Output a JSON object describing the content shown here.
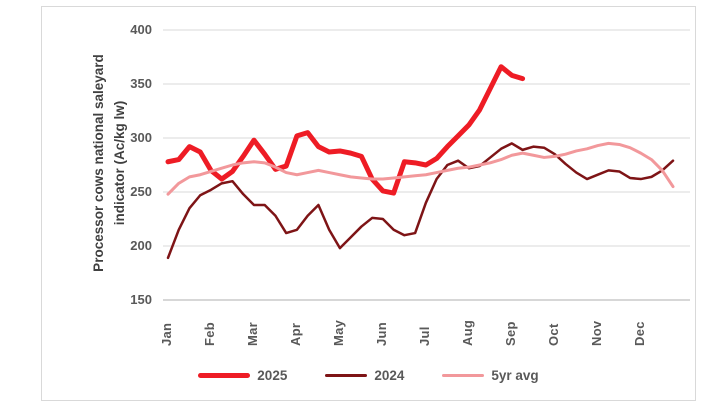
{
  "chart_data": {
    "type": "line",
    "title": "",
    "ylabel": "Processor cows national saleyard indicator (Ac/kg lw)",
    "xlabel": "",
    "ylim": [
      150,
      400
    ],
    "yticks": [
      400,
      350,
      300,
      250,
      200,
      150
    ],
    "grid": true,
    "legend_position": "bottom",
    "x_axis": {
      "categories": [
        "Jan",
        "Feb",
        "Mar",
        "Apr",
        "May",
        "Jun",
        "Jul",
        "Aug",
        "Sep",
        "Oct",
        "Nov",
        "Dec"
      ],
      "points_per_month": 4,
      "frequency": "weekly"
    },
    "series": [
      {
        "name": "2025",
        "color": "#EE1C25",
        "stroke_width": 5,
        "values": [
          278,
          280,
          292,
          287,
          270,
          262,
          269,
          283,
          298,
          285,
          271,
          274,
          302,
          305,
          292,
          287,
          288,
          286,
          283,
          262,
          251,
          249,
          278,
          277,
          275,
          281,
          292,
          302,
          312,
          326,
          346,
          366,
          358,
          355
        ]
      },
      {
        "name": "2024",
        "color": "#7E1416",
        "stroke_width": 2.5,
        "values": [
          189,
          215,
          235,
          247,
          252,
          258,
          260,
          248,
          238,
          238,
          228,
          212,
          215,
          228,
          238,
          215,
          198,
          208,
          218,
          226,
          225,
          215,
          210,
          212,
          240,
          262,
          275,
          279,
          272,
          274,
          282,
          290,
          295,
          289,
          292,
          291,
          285,
          276,
          268,
          262,
          266,
          270,
          269,
          263,
          262,
          264,
          270,
          279
        ]
      },
      {
        "name": "5yr avg",
        "color": "#F2989B",
        "stroke_width": 3,
        "values": [
          248,
          258,
          264,
          266,
          269,
          272,
          275,
          277,
          278,
          277,
          273,
          268,
          266,
          268,
          270,
          268,
          266,
          264,
          263,
          262,
          262,
          263,
          264,
          265,
          266,
          268,
          270,
          272,
          273,
          275,
          277,
          280,
          284,
          286,
          284,
          282,
          283,
          285,
          288,
          290,
          293,
          295,
          294,
          291,
          286,
          280,
          270,
          255
        ]
      }
    ],
    "colors": {
      "gridline": "#D9D9D9",
      "axis_line": "#BFBFBF",
      "tick_label": "#595959",
      "axis_title": "#404040"
    }
  }
}
